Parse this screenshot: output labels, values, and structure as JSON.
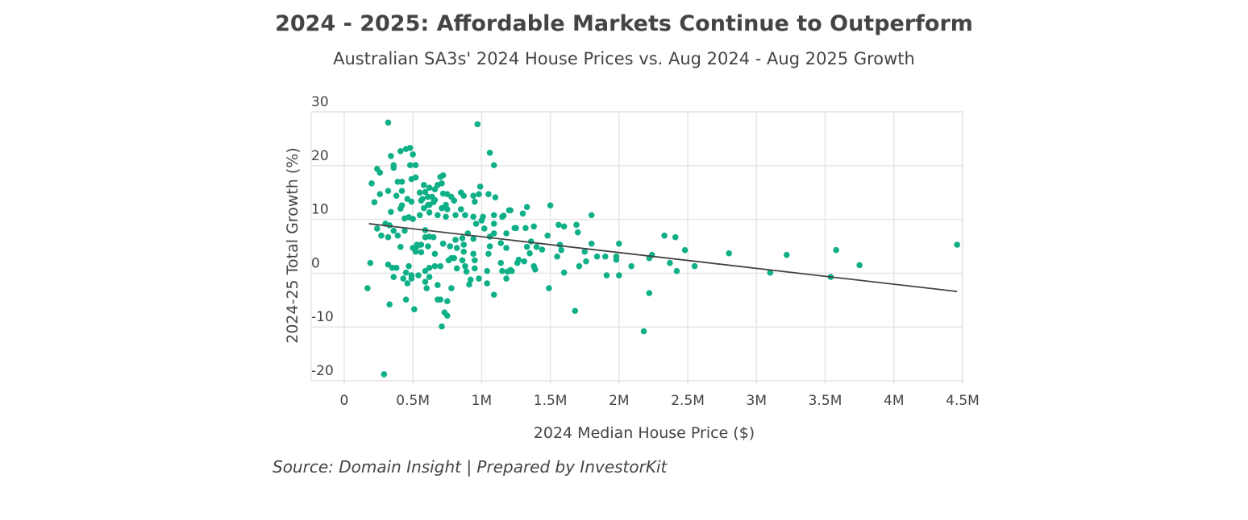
{
  "chart_data": {
    "type": "scatter",
    "title": "2024 - 2025: Affordable Markets Continue to Outperform",
    "subtitle": "Australian SA3s' 2024 House Prices vs. Aug 2024 - Aug 2025 Growth",
    "xlabel": "2024 Median House Price ($)",
    "ylabel": "2024-25 Total Growth (%)",
    "source": "Source: Domain Insight | Prepared by InvestorKit",
    "x_unit": "millions AUD",
    "xlim": [
      -0.24,
      4.5
    ],
    "ylim": [
      -20,
      30
    ],
    "grid": true,
    "x_ticks": [
      {
        "v": 0,
        "label": "0"
      },
      {
        "v": 0.5,
        "label": "0.5M"
      },
      {
        "v": 1,
        "label": "1M"
      },
      {
        "v": 1.5,
        "label": "1.5M"
      },
      {
        "v": 2,
        "label": "2M"
      },
      {
        "v": 2.5,
        "label": "2.5M"
      },
      {
        "v": 3,
        "label": "3M"
      },
      {
        "v": 3.5,
        "label": "3.5M"
      },
      {
        "v": 4,
        "label": "4M"
      },
      {
        "v": 4.5,
        "label": "4.5M"
      }
    ],
    "y_ticks": [
      {
        "v": 30,
        "label": "30"
      },
      {
        "v": 20,
        "label": "20"
      },
      {
        "v": 10,
        "label": "10"
      },
      {
        "v": 0,
        "label": "0"
      },
      {
        "v": -10,
        "label": "-10"
      },
      {
        "v": -20,
        "label": "-20"
      }
    ],
    "colors": {
      "points": "#0fb087",
      "trendline": "#444444",
      "grid": "#e6e6e6"
    },
    "trendline": {
      "x": [
        0.18,
        4.46
      ],
      "y": [
        9.2,
        -3.4
      ]
    },
    "points": [
      [
        1.5,
        12.6
      ],
      [
        1.33,
        12.3
      ],
      [
        1.3,
        11.1
      ],
      [
        1.21,
        11.7
      ],
      [
        1.8,
        10.8
      ],
      [
        1.56,
        9.0
      ],
      [
        1.6,
        8.7
      ],
      [
        1.69,
        9.0
      ],
      [
        1.7,
        7.6
      ],
      [
        1.25,
        8.4
      ],
      [
        1.32,
        8.4
      ],
      [
        1.38,
        8.7
      ],
      [
        1.48,
        7.0
      ],
      [
        1.36,
        5.9
      ],
      [
        1.33,
        4.9
      ],
      [
        1.4,
        4.9
      ],
      [
        1.44,
        4.4
      ],
      [
        1.35,
        3.7
      ],
      [
        1.57,
        5.3
      ],
      [
        1.58,
        4.3
      ],
      [
        1.55,
        3.1
      ],
      [
        1.75,
        4.0
      ],
      [
        1.8,
        5.5
      ],
      [
        1.84,
        3.1
      ],
      [
        1.9,
        3.1
      ],
      [
        1.98,
        3.1
      ],
      [
        1.98,
        2.5
      ],
      [
        2.0,
        5.5
      ],
      [
        1.71,
        1.3
      ],
      [
        1.76,
        2.2
      ],
      [
        1.6,
        0.1
      ],
      [
        1.91,
        -0.4
      ],
      [
        2.0,
        -0.4
      ],
      [
        2.09,
        1.3
      ],
      [
        2.22,
        2.8
      ],
      [
        2.24,
        3.4
      ],
      [
        2.33,
        7.0
      ],
      [
        2.41,
        6.7
      ],
      [
        2.48,
        4.3
      ],
      [
        2.37,
        1.9
      ],
      [
        2.42,
        0.4
      ],
      [
        2.55,
        1.3
      ],
      [
        1.49,
        -2.8
      ],
      [
        1.68,
        -7.0
      ],
      [
        2.22,
        -3.7
      ],
      [
        2.18,
        -10.8
      ],
      [
        1.19,
        0.3
      ],
      [
        1.22,
        0.4
      ],
      [
        1.26,
        1.9
      ],
      [
        1.27,
        2.5
      ],
      [
        1.31,
        2.2
      ],
      [
        1.38,
        1.3
      ],
      [
        1.39,
        0.7
      ],
      [
        2.8,
        3.7
      ],
      [
        3.1,
        0.1
      ],
      [
        3.22,
        3.4
      ],
      [
        3.54,
        -0.7
      ],
      [
        3.58,
        4.3
      ],
      [
        3.75,
        1.5
      ],
      [
        4.46,
        5.3
      ],
      [
        0.32,
        28.0
      ],
      [
        0.97,
        27.7
      ],
      [
        1.06,
        22.4
      ],
      [
        1.09,
        20.1
      ],
      [
        0.34,
        21.8
      ],
      [
        0.41,
        22.7
      ],
      [
        0.45,
        23.1
      ],
      [
        0.48,
        23.3
      ],
      [
        0.5,
        22.1
      ],
      [
        0.36,
        20.1
      ],
      [
        0.36,
        19.6
      ],
      [
        0.24,
        19.4
      ],
      [
        0.26,
        18.7
      ],
      [
        0.48,
        20.1
      ],
      [
        0.52,
        20.1
      ],
      [
        0.2,
        16.7
      ],
      [
        0.39,
        17.0
      ],
      [
        0.42,
        17.0
      ],
      [
        0.49,
        17.5
      ],
      [
        0.52,
        17.8
      ],
      [
        0.7,
        17.9
      ],
      [
        0.72,
        18.2
      ],
      [
        0.58,
        16.4
      ],
      [
        0.26,
        14.7
      ],
      [
        0.32,
        15.3
      ],
      [
        0.38,
        14.4
      ],
      [
        0.42,
        15.3
      ],
      [
        0.22,
        13.2
      ],
      [
        0.34,
        11.4
      ],
      [
        0.46,
        13.8
      ],
      [
        0.49,
        13.3
      ],
      [
        0.55,
        15.0
      ],
      [
        0.57,
        13.8
      ],
      [
        0.59,
        15.1
      ],
      [
        0.62,
        15.9
      ],
      [
        0.66,
        15.6
      ],
      [
        0.68,
        16.4
      ],
      [
        0.71,
        16.7
      ],
      [
        0.72,
        14.8
      ],
      [
        0.75,
        14.7
      ],
      [
        0.78,
        14.2
      ],
      [
        0.8,
        13.5
      ],
      [
        0.42,
        12.6
      ],
      [
        0.41,
        12.0
      ],
      [
        0.58,
        12.1
      ],
      [
        0.62,
        12.7
      ],
      [
        0.65,
        13.2
      ],
      [
        0.66,
        13.6
      ],
      [
        0.71,
        12.1
      ],
      [
        0.74,
        12.7
      ],
      [
        0.75,
        11.9
      ],
      [
        0.85,
        15.0
      ],
      [
        0.87,
        14.4
      ],
      [
        0.94,
        14.4
      ],
      [
        0.95,
        13.3
      ],
      [
        0.98,
        14.7
      ],
      [
        0.99,
        16.1
      ],
      [
        1.05,
        14.7
      ],
      [
        1.1,
        14.1
      ],
      [
        1.2,
        11.7
      ],
      [
        0.55,
        10.8
      ],
      [
        0.62,
        11.3
      ],
      [
        0.68,
        10.8
      ],
      [
        0.74,
        10.5
      ],
      [
        0.81,
        10.8
      ],
      [
        0.85,
        11.9
      ],
      [
        0.88,
        10.8
      ],
      [
        0.94,
        10.5
      ],
      [
        1.01,
        10.5
      ],
      [
        1.09,
        10.8
      ],
      [
        1.15,
        10.5
      ],
      [
        1.16,
        10.7
      ],
      [
        0.44,
        10.2
      ],
      [
        0.47,
        10.4
      ],
      [
        0.5,
        10.1
      ],
      [
        0.3,
        9.2
      ],
      [
        0.33,
        8.9
      ],
      [
        0.24,
        8.3
      ],
      [
        0.36,
        7.9
      ],
      [
        0.27,
        7.0
      ],
      [
        0.32,
        6.7
      ],
      [
        0.39,
        7.0
      ],
      [
        0.44,
        7.9
      ],
      [
        0.59,
        8.0
      ],
      [
        0.62,
        6.8
      ],
      [
        0.65,
        6.7
      ],
      [
        0.72,
        5.5
      ],
      [
        0.77,
        5.0
      ],
      [
        0.81,
        6.2
      ],
      [
        0.82,
        4.7
      ],
      [
        0.86,
        6.5
      ],
      [
        0.87,
        5.3
      ],
      [
        0.9,
        7.4
      ],
      [
        0.94,
        6.4
      ],
      [
        1.0,
        9.8
      ],
      [
        1.02,
        8.3
      ],
      [
        1.06,
        6.8
      ],
      [
        1.09,
        7.4
      ],
      [
        1.14,
        5.6
      ],
      [
        1.18,
        7.4
      ],
      [
        1.24,
        8.4
      ],
      [
        0.41,
        4.9
      ],
      [
        0.5,
        4.7
      ],
      [
        0.53,
        5.3
      ],
      [
        0.56,
        5.3
      ],
      [
        0.59,
        6.7
      ],
      [
        0.61,
        5.0
      ],
      [
        0.96,
        9.2
      ],
      [
        1.09,
        9.2
      ],
      [
        0.61,
        14.2
      ],
      [
        0.64,
        14.2
      ],
      [
        0.56,
        13.5
      ],
      [
        0.61,
        12.7
      ],
      [
        0.19,
        1.9
      ],
      [
        0.17,
        -2.8
      ],
      [
        0.32,
        1.6
      ],
      [
        0.35,
        1.0
      ],
      [
        0.38,
        1.0
      ],
      [
        0.47,
        1.3
      ],
      [
        0.36,
        -0.7
      ],
      [
        0.43,
        -1.0
      ],
      [
        0.46,
        -1.9
      ],
      [
        0.45,
        0.1
      ],
      [
        0.49,
        -0.4
      ],
      [
        0.54,
        -0.4
      ],
      [
        0.49,
        -1.0
      ],
      [
        0.59,
        0.4
      ],
      [
        0.59,
        -1.6
      ],
      [
        0.6,
        -2.8
      ],
      [
        0.62,
        -0.7
      ],
      [
        0.68,
        -2.2
      ],
      [
        0.78,
        -2.8
      ],
      [
        0.45,
        -4.9
      ],
      [
        0.33,
        -5.8
      ],
      [
        0.51,
        -6.7
      ],
      [
        0.68,
        -4.9
      ],
      [
        0.7,
        -4.9
      ],
      [
        0.75,
        -5.2
      ],
      [
        0.73,
        -7.3
      ],
      [
        0.75,
        -7.9
      ],
      [
        0.71,
        -9.9
      ],
      [
        0.29,
        -18.8
      ],
      [
        0.62,
        1.0
      ],
      [
        0.66,
        1.3
      ],
      [
        0.7,
        1.3
      ],
      [
        0.76,
        2.4
      ],
      [
        0.8,
        2.8
      ],
      [
        0.82,
        0.9
      ],
      [
        0.86,
        2.4
      ],
      [
        0.89,
        0.3
      ],
      [
        0.92,
        -1.2
      ],
      [
        0.91,
        -2.1
      ],
      [
        0.95,
        0.9
      ],
      [
        0.98,
        -1.0
      ],
      [
        1.04,
        -1.9
      ],
      [
        1.04,
        0.4
      ],
      [
        1.09,
        -4.0
      ],
      [
        1.14,
        1.9
      ],
      [
        1.15,
        0.4
      ],
      [
        1.18,
        -1.0
      ],
      [
        1.21,
        0.6
      ],
      [
        1.05,
        3.6
      ],
      [
        1.06,
        5.0
      ],
      [
        1.18,
        4.7
      ],
      [
        0.53,
        5.0
      ],
      [
        0.52,
        4.0
      ],
      [
        0.56,
        3.9
      ],
      [
        0.66,
        3.6
      ],
      [
        0.72,
        5.5
      ],
      [
        0.77,
        5.0
      ],
      [
        0.78,
        2.8
      ],
      [
        0.87,
        4.0
      ],
      [
        0.94,
        3.6
      ],
      [
        0.95,
        2.4
      ],
      [
        0.88,
        1.3
      ]
    ]
  }
}
